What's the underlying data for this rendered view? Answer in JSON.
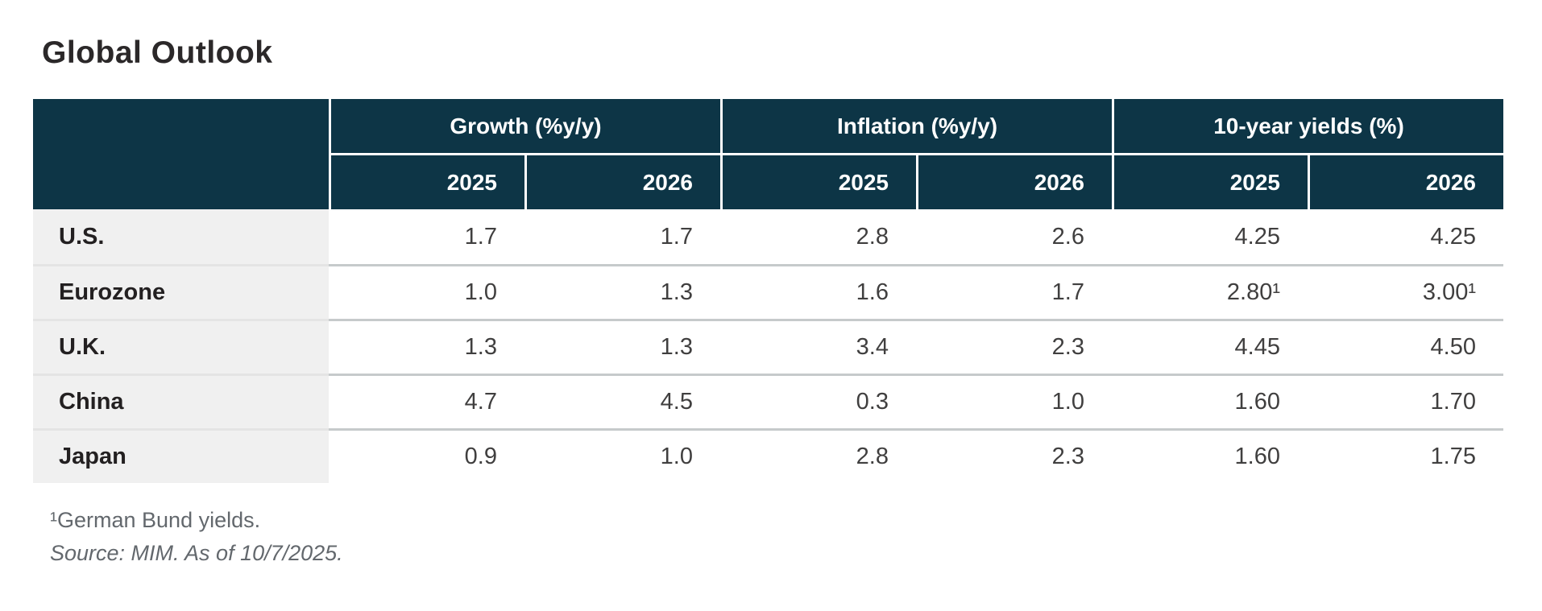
{
  "chart_data": {
    "type": "table",
    "title": "Global Outlook",
    "column_groups": [
      "Growth (%y/y)",
      "Inflation (%y/y)",
      "10-year yields (%)"
    ],
    "sub_columns": [
      "2025",
      "2026",
      "2025",
      "2026",
      "2025",
      "2026"
    ],
    "row_labels": [
      "U.S.",
      "Eurozone",
      "U.K.",
      "China",
      "Japan"
    ],
    "rows": [
      [
        "1.7",
        "1.7",
        "2.8",
        "2.6",
        "4.25",
        "4.25"
      ],
      [
        "1.0",
        "1.3",
        "1.6",
        "1.7",
        "2.80¹",
        "3.00¹"
      ],
      [
        "1.3",
        "1.3",
        "3.4",
        "2.3",
        "4.45",
        "4.50"
      ],
      [
        "4.7",
        "4.5",
        "0.3",
        "1.0",
        "1.60",
        "1.70"
      ],
      [
        "0.9",
        "1.0",
        "2.8",
        "2.3",
        "1.60",
        "1.75"
      ]
    ],
    "footnote": "¹German Bund yields.",
    "source": "Source: MIM. As of 10/7/2025.",
    "layout_hints": {
      "header_background": "#0d3546",
      "row_label_background": "#f0f0f0",
      "header_text_color": "#ffffff",
      "value_alignment": "right"
    }
  }
}
